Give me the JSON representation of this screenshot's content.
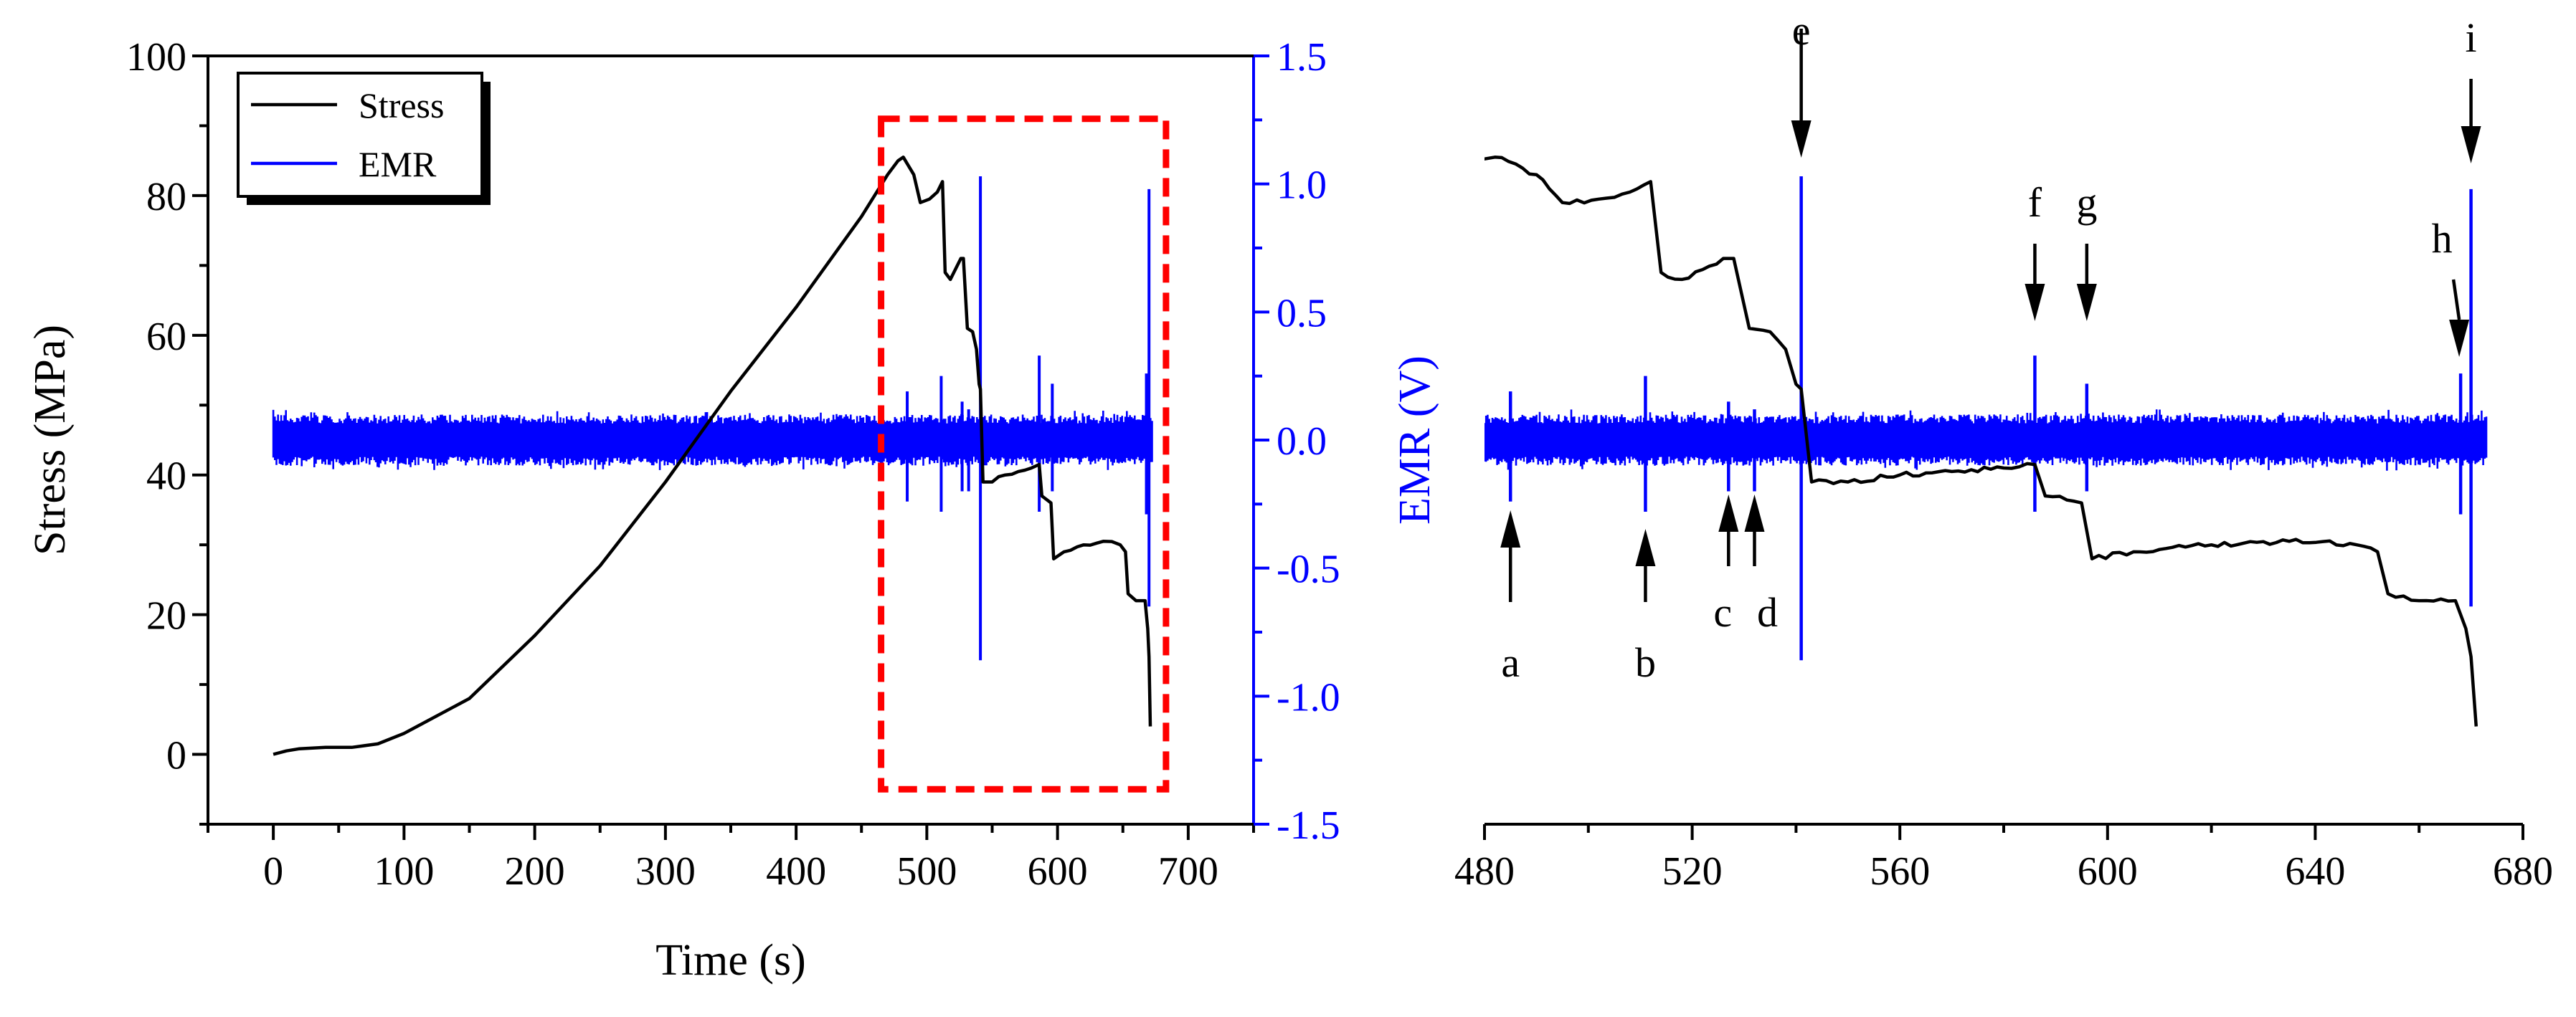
{
  "colors": {
    "stress": "#000000",
    "emr": "#0000ff",
    "box": "#ff0000",
    "axis": "#000000"
  },
  "chart_data": [
    {
      "type": "line",
      "id": "left",
      "xlabel": "Time (s)",
      "ylabel": "Stress (MPa)",
      "y2label": "EMR (V)",
      "xlim": [
        -50,
        750
      ],
      "ylim": [
        -10,
        100
      ],
      "y2lim": [
        -1.5,
        1.5
      ],
      "xticks": [
        "0",
        "100",
        "200",
        "300",
        "400",
        "500",
        "600",
        "700"
      ],
      "yticks": [
        "0",
        "20",
        "40",
        "60",
        "80",
        "100"
      ],
      "y2ticks": [
        "1.5",
        "1.0",
        "0.5",
        "0.0",
        "-0.5",
        "-1.0",
        "-1.5"
      ],
      "legend": {
        "position": "top-left",
        "entries": [
          "Stress",
          "EMR"
        ]
      },
      "highlight_box": {
        "x": [
          465,
          683
        ],
        "y": [
          -5,
          91
        ]
      },
      "series": [
        {
          "name": "Stress",
          "axis": "left",
          "points": [
            [
              0,
              0
            ],
            [
              10,
              0.5
            ],
            [
              20,
              0.8
            ],
            [
              40,
              1
            ],
            [
              60,
              1
            ],
            [
              80,
              1.5
            ],
            [
              100,
              3
            ],
            [
              150,
              8
            ],
            [
              200,
              17
            ],
            [
              250,
              27
            ],
            [
              300,
              39
            ],
            [
              350,
              52
            ],
            [
              400,
              64
            ],
            [
              450,
              77
            ],
            [
              470,
              83
            ],
            [
              478,
              85
            ],
            [
              482,
              85.5
            ],
            [
              490,
              83
            ],
            [
              495,
              79
            ],
            [
              502,
              79.5
            ],
            [
              508,
              80.5
            ],
            [
              512,
              82
            ],
            [
              514,
              69
            ],
            [
              518,
              68
            ],
            [
              526,
              71
            ],
            [
              528,
              71
            ],
            [
              531,
              61
            ],
            [
              535,
              60.5
            ],
            [
              538,
              58
            ],
            [
              540,
              53
            ],
            [
              541,
              52.3
            ],
            [
              543,
              39
            ],
            [
              550,
              39
            ],
            [
              560,
              40
            ],
            [
              570,
              40.5
            ],
            [
              580,
              41
            ],
            [
              586,
              41.5
            ],
            [
              588,
              37
            ],
            [
              595,
              36
            ],
            [
              597,
              28
            ],
            [
              605,
              29
            ],
            [
              620,
              30
            ],
            [
              635,
              30.5
            ],
            [
              648,
              30
            ],
            [
              652,
              29
            ],
            [
              654,
              23
            ],
            [
              660,
              22
            ],
            [
              667,
              22
            ],
            [
              669,
              18
            ],
            [
              670,
              14
            ],
            [
              671,
              4
            ]
          ]
        },
        {
          "name": "EMR",
          "axis": "right",
          "noise_band": [
            -0.1,
            0.1
          ],
          "x_range": [
            0,
            673
          ],
          "spikes": [
            {
              "x": 485,
              "top": 0.19,
              "bottom": -0.24
            },
            {
              "x": 511,
              "top": 0.25,
              "bottom": -0.28
            },
            {
              "x": 527,
              "top": 0.15,
              "bottom": -0.2
            },
            {
              "x": 532,
              "top": 0.12,
              "bottom": -0.2
            },
            {
              "x": 541,
              "top": 1.03,
              "bottom": -0.86
            },
            {
              "x": 586,
              "top": 0.33,
              "bottom": -0.28
            },
            {
              "x": 596,
              "top": 0.22,
              "bottom": -0.2
            },
            {
              "x": 668,
              "top": 0.26,
              "bottom": -0.29
            },
            {
              "x": 670,
              "top": 0.98,
              "bottom": -0.65
            }
          ]
        }
      ]
    },
    {
      "type": "line",
      "id": "right",
      "xlabel": "",
      "ylabel": "",
      "xlim": [
        480,
        680
      ],
      "ylim": [
        -10,
        100
      ],
      "y2lim": [
        -1.5,
        1.5
      ],
      "xticks": [
        "480",
        "520",
        "560",
        "600",
        "640",
        "680"
      ],
      "events": [
        {
          "label": "a",
          "x": 485
        },
        {
          "label": "b",
          "x": 511
        },
        {
          "label": "c",
          "x": 527
        },
        {
          "label": "d",
          "x": 532
        },
        {
          "label": "e",
          "x": 541
        },
        {
          "label": "f",
          "x": 586
        },
        {
          "label": "g",
          "x": 596
        },
        {
          "label": "h",
          "x": 668
        },
        {
          "label": "i",
          "x": 670
        }
      ]
    }
  ]
}
